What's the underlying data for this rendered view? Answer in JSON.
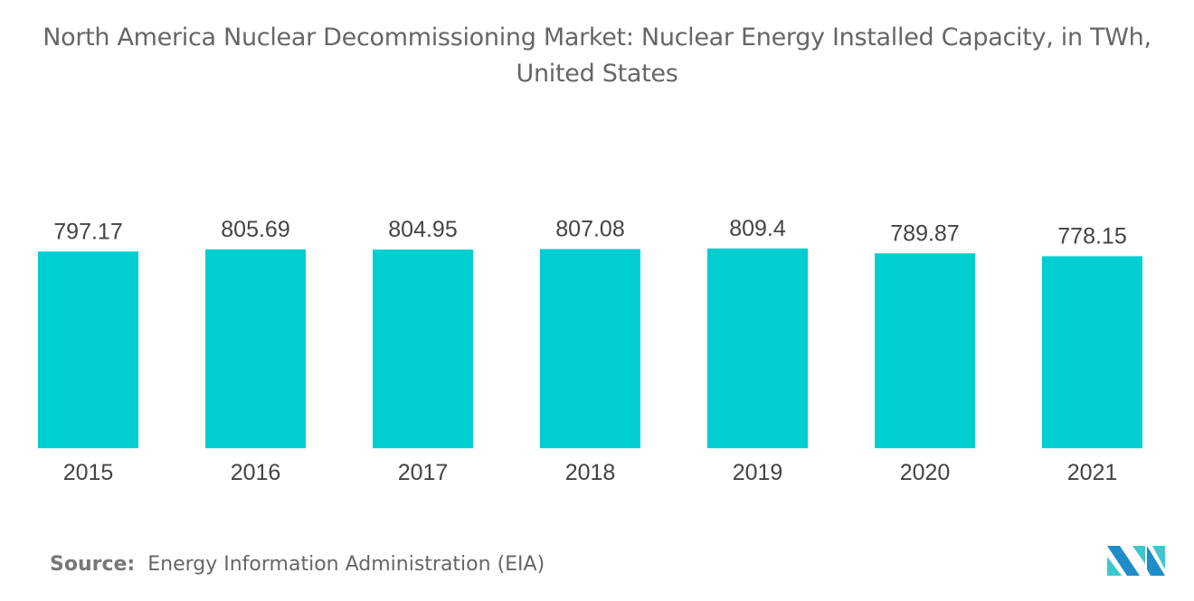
{
  "chart_data": {
    "type": "bar",
    "title": "North America Nuclear Decommissioning Market: Nuclear Energy Installed Capacity, in TWh, United States",
    "categories": [
      "2015",
      "2016",
      "2017",
      "2018",
      "2019",
      "2020",
      "2021"
    ],
    "values": [
      797.17,
      805.69,
      804.95,
      807.08,
      809.4,
      789.87,
      778.15
    ],
    "value_labels": [
      "797.17",
      "805.69",
      "804.95",
      "807.08",
      "809.4",
      "789.87",
      "778.15"
    ],
    "xlabel": "",
    "ylabel": "",
    "ylim": [
      0,
      810
    ],
    "grid": false,
    "bar_color": "#00CED1"
  },
  "source": {
    "label": "Source:",
    "text": "Energy Information Administration (EIA)"
  },
  "logo": {
    "colors": [
      "#1F8DC9",
      "#3CC8D0"
    ]
  }
}
